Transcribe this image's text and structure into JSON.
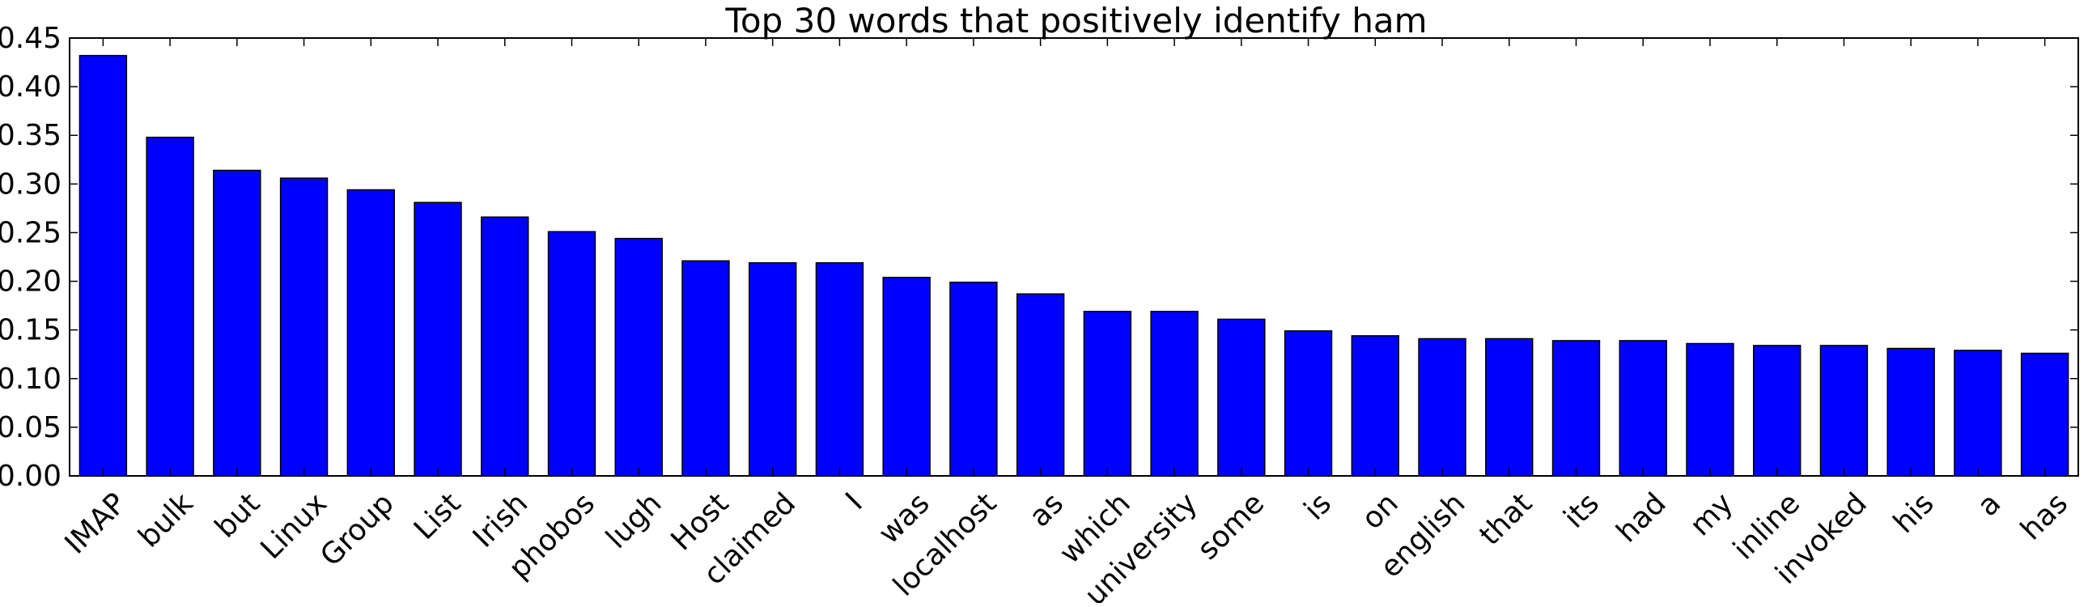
{
  "chart_data": {
    "type": "bar",
    "title": "Top 30 words that positively identify ham",
    "xlabel": "",
    "ylabel": "",
    "categories": [
      "IMAP",
      "bulk",
      "but",
      "Linux",
      "Group",
      "List",
      "Irish",
      "phobos",
      "lugh",
      "Host",
      "claimed",
      "I",
      "was",
      "localhost",
      "as",
      "which",
      "university",
      "some",
      "is",
      "on",
      "english",
      "that",
      "its",
      "had",
      "my",
      "inline",
      "invoked",
      "his",
      "a",
      "has"
    ],
    "values": [
      0.432,
      0.348,
      0.314,
      0.306,
      0.294,
      0.281,
      0.266,
      0.251,
      0.244,
      0.221,
      0.219,
      0.219,
      0.204,
      0.199,
      0.187,
      0.169,
      0.169,
      0.161,
      0.149,
      0.144,
      0.141,
      0.141,
      0.139,
      0.139,
      0.136,
      0.134,
      0.134,
      0.131,
      0.129,
      0.126
    ],
    "ylim": [
      0,
      0.45
    ],
    "yticks": [
      "0.00",
      "0.05",
      "0.10",
      "0.15",
      "0.20",
      "0.25",
      "0.30",
      "0.35",
      "0.40",
      "0.45"
    ],
    "bar_color": "#0000ff",
    "edge_color": "#000000",
    "grid": false,
    "legend": "none"
  }
}
